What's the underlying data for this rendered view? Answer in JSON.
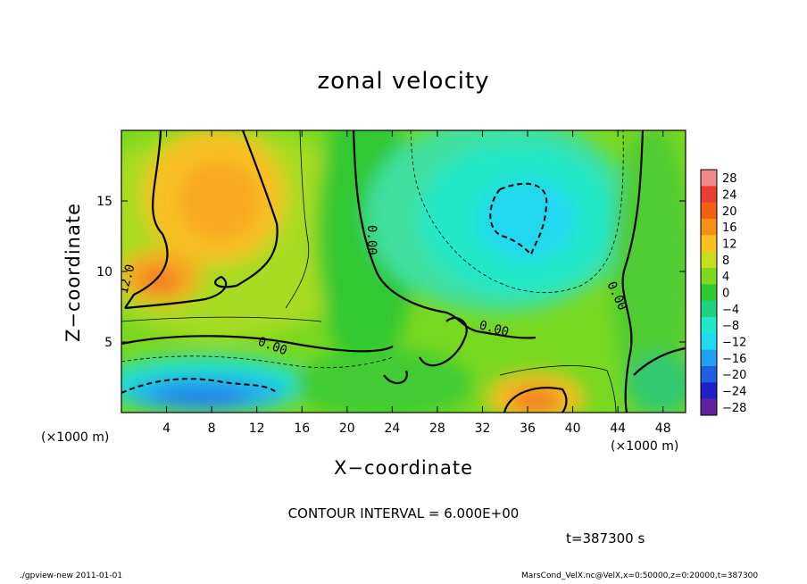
{
  "chart_data": {
    "type": "heatmap",
    "title": "zonal velocity",
    "xlabel": "X−coordinate",
    "ylabel": "Z−coordinate",
    "x_unit": "(×1000 m)",
    "xlim": [
      0,
      50
    ],
    "ylim": [
      0,
      20
    ],
    "x_ticks": [
      "4",
      "8",
      "12",
      "16",
      "20",
      "24",
      "28",
      "32",
      "36",
      "40",
      "44",
      "48"
    ],
    "y_ticks": [
      "5",
      "10",
      "15"
    ],
    "colorbar": {
      "levels": [
        "28",
        "24",
        "20",
        "16",
        "12",
        "8",
        "4",
        "0",
        "−4",
        "−8",
        "−12",
        "−16",
        "−20",
        "−24",
        "−28"
      ],
      "colors": [
        "#f08a8a",
        "#e84030",
        "#f06010",
        "#f89018",
        "#f8c020",
        "#c8dc20",
        "#80d820",
        "#30c830",
        "#20d080",
        "#20e8c8",
        "#20d8f0",
        "#20a0f0",
        "#2060e0",
        "#2020c8",
        "#6020a0"
      ]
    },
    "contour_labels": [
      "0.00",
      "0.00",
      "0.00",
      "0.00",
      "12.0"
    ],
    "contour_interval": "CONTOUR INTERVAL = 6.000E+00",
    "time": "t=387300 s"
  },
  "footer": {
    "left": "./gpview-new  2011-01-01",
    "right": "MarsCond_VelX.nc@VelX,x=0:50000,z=0:20000,t=387300"
  }
}
